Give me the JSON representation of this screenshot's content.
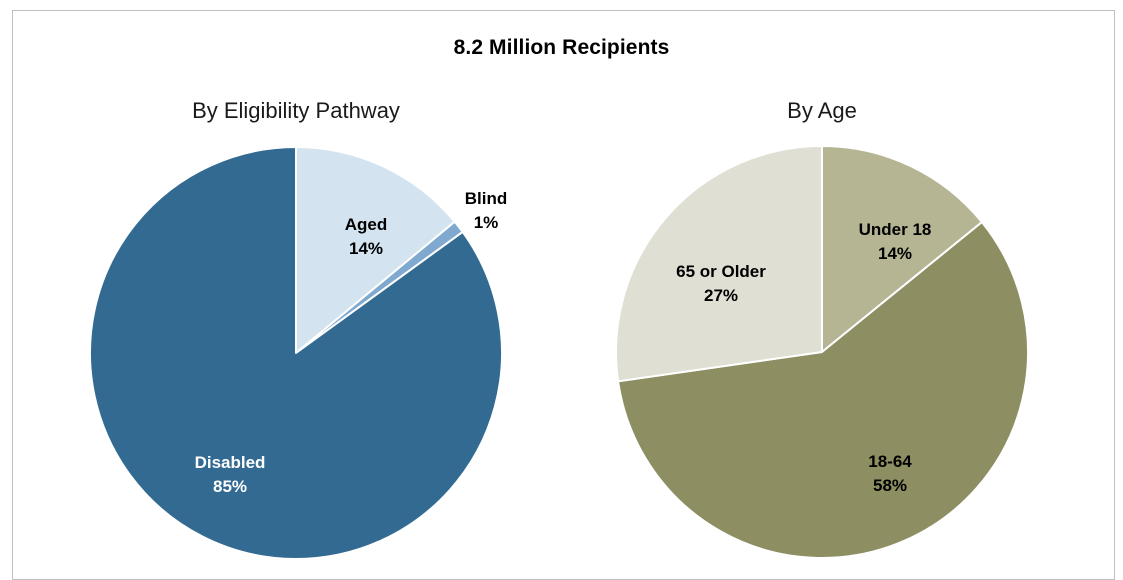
{
  "title": "8.2 Million Recipients",
  "chart_data": [
    {
      "type": "pie",
      "title": "By Eligibility Pathway",
      "start_angle_deg": 0,
      "direction": "clockwise",
      "slices": [
        {
          "label": "Aged",
          "value": 14,
          "value_label": "14%",
          "color": "#d3e3ef",
          "text_color": "#000000"
        },
        {
          "label": "Blind",
          "value": 1,
          "value_label": "1%",
          "color": "#7fa9cf",
          "text_color": "#000000"
        },
        {
          "label": "Disabled",
          "value": 85,
          "value_label": "85%",
          "color": "#336a91",
          "text_color": "#ffffff"
        }
      ]
    },
    {
      "type": "pie",
      "title": "By Age",
      "start_angle_deg": 0,
      "direction": "clockwise",
      "slices": [
        {
          "label": "Under 18",
          "value": 14,
          "value_label": "14%",
          "color": "#b5b594",
          "text_color": "#000000"
        },
        {
          "label": "18-64",
          "value": 58,
          "value_label": "58%",
          "color": "#8e8e63",
          "text_color": "#000000"
        },
        {
          "label": "65 or Older",
          "value": 27,
          "value_label": "27%",
          "color": "#dfdfd3",
          "text_color": "#000000"
        }
      ]
    }
  ]
}
